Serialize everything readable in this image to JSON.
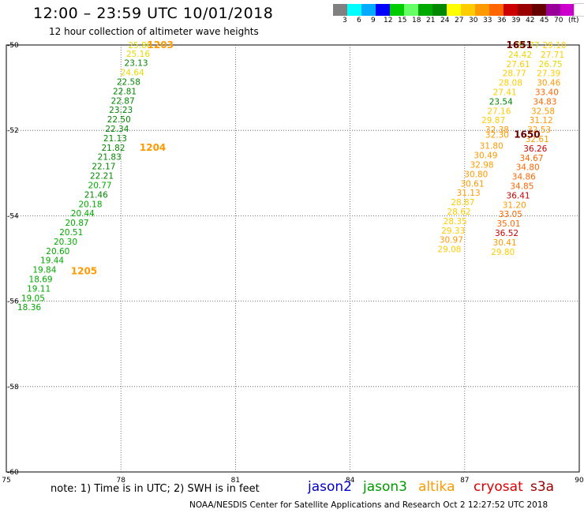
{
  "header": {
    "title": "12:00 – 23:59 UTC 10/01/2018",
    "subtitle": "12 hour collection of altimeter wave heights"
  },
  "legend": {
    "colors": [
      "#808080",
      "#00ffff",
      "#00aaff",
      "#0000ff",
      "#00cc00",
      "#66ff66",
      "#00aa00",
      "#008800",
      "#ffff00",
      "#ffcc00",
      "#ff9900",
      "#ff6600",
      "#cc0000",
      "#990000",
      "#660000",
      "#990099",
      "#cc00cc",
      "#ffffff",
      "#000000"
    ],
    "labels": [
      "3",
      "6",
      "9",
      "12",
      "15",
      "18",
      "21",
      "24",
      "27",
      "30",
      "33",
      "36",
      "39",
      "42",
      "45",
      "70",
      "(ft)"
    ]
  },
  "footer": {
    "note": "note:  1) Time is in UTC;  2) SWH is in feet",
    "satellites": [
      {
        "name": "jason2",
        "color": "#0000cc"
      },
      {
        "name": "jason3",
        "color": "#009900"
      },
      {
        "name": "altika",
        "color": "#ff9900"
      },
      {
        "name": "cryosat",
        "color": "#dd0000"
      },
      {
        "name": "s3a",
        "color": "#990000"
      }
    ],
    "credit": "NOAA/NESDIS Center for Satellite Applications and Research     Oct  2  12:27:52 UTC 2018"
  },
  "chart_data": {
    "type": "scatter",
    "title": "12:00 – 23:59 UTC 10/01/2018",
    "xlim": [
      75,
      90
    ],
    "ylim": [
      -60,
      -50
    ],
    "xticks": [
      "75",
      "78",
      "81",
      "84",
      "87",
      "90"
    ],
    "yticks": [
      "-50",
      "-52",
      "-54",
      "-56",
      "-58",
      "-60"
    ],
    "grid": true,
    "series": [
      {
        "name": "altika",
        "color_rule": "swh",
        "points": [
          {
            "x": 78.5,
            "y": -50.0,
            "v": "25.86"
          },
          {
            "x": 78.45,
            "y": -50.2,
            "v": "25.16"
          },
          {
            "x": 78.4,
            "y": -50.42,
            "v": "23.13"
          },
          {
            "x": 78.3,
            "y": -50.64,
            "v": "24.64"
          },
          {
            "x": 78.2,
            "y": -50.86,
            "v": "22.58"
          },
          {
            "x": 78.1,
            "y": -51.08,
            "v": "22.81"
          },
          {
            "x": 78.05,
            "y": -51.3,
            "v": "22.87"
          },
          {
            "x": 78.0,
            "y": -51.52,
            "v": "23.23"
          },
          {
            "x": 77.95,
            "y": -51.74,
            "v": "22.50"
          },
          {
            "x": 77.9,
            "y": -51.96,
            "v": "22.34"
          },
          {
            "x": 77.85,
            "y": -52.18,
            "v": "21.13"
          },
          {
            "x": 77.8,
            "y": -52.4,
            "v": "21.82"
          },
          {
            "x": 77.7,
            "y": -52.62,
            "v": "21.83"
          },
          {
            "x": 77.55,
            "y": -52.84,
            "v": "22.17"
          },
          {
            "x": 77.5,
            "y": -53.06,
            "v": "22.21"
          },
          {
            "x": 77.45,
            "y": -53.28,
            "v": "20.77"
          },
          {
            "x": 77.35,
            "y": -53.5,
            "v": "21.46"
          },
          {
            "x": 77.2,
            "y": -53.72,
            "v": "20.18"
          },
          {
            "x": 77.0,
            "y": -53.94,
            "v": "20.44"
          },
          {
            "x": 76.85,
            "y": -54.16,
            "v": "20.87"
          },
          {
            "x": 76.7,
            "y": -54.38,
            "v": "20.51"
          },
          {
            "x": 76.55,
            "y": -54.6,
            "v": "20.30"
          },
          {
            "x": 76.35,
            "y": -54.82,
            "v": "20.60"
          },
          {
            "x": 76.2,
            "y": -55.04,
            "v": "19.44"
          },
          {
            "x": 76.0,
            "y": -55.26,
            "v": "19.84"
          },
          {
            "x": 75.9,
            "y": -55.48,
            "v": "18.69"
          },
          {
            "x": 75.85,
            "y": -55.7,
            "v": "19.11"
          },
          {
            "x": 75.7,
            "y": -55.92,
            "v": "19.05"
          },
          {
            "x": 75.6,
            "y": -56.14,
            "v": "18.36"
          }
        ]
      },
      {
        "name": "s3a",
        "color_rule": "swh",
        "points": [
          {
            "x": 88.65,
            "y": -50.0,
            "v": "25.77"
          },
          {
            "x": 88.45,
            "y": -50.22,
            "v": "24.42"
          },
          {
            "x": 88.4,
            "y": -50.44,
            "v": "27.61"
          },
          {
            "x": 88.3,
            "y": -50.66,
            "v": "28.77"
          },
          {
            "x": 88.2,
            "y": -50.88,
            "v": "28.08"
          },
          {
            "x": 88.05,
            "y": -51.1,
            "v": "27.41"
          },
          {
            "x": 87.95,
            "y": -51.32,
            "v": "23.54"
          },
          {
            "x": 87.9,
            "y": -51.54,
            "v": "27.16"
          },
          {
            "x": 87.75,
            "y": -51.76,
            "v": "29.87"
          },
          {
            "x": 87.85,
            "y": -51.98,
            "v": "32.38"
          },
          {
            "x": 87.85,
            "y": -52.1,
            "v": "32.30"
          },
          {
            "x": 87.7,
            "y": -52.36,
            "v": "31.80"
          },
          {
            "x": 87.55,
            "y": -52.58,
            "v": "30.49"
          },
          {
            "x": 87.45,
            "y": -52.8,
            "v": "32.98"
          },
          {
            "x": 87.3,
            "y": -53.02,
            "v": "30.80"
          },
          {
            "x": 87.2,
            "y": -53.24,
            "v": "30.61"
          },
          {
            "x": 87.1,
            "y": -53.46,
            "v": "31.13"
          },
          {
            "x": 86.95,
            "y": -53.68,
            "v": "28.87"
          },
          {
            "x": 86.85,
            "y": -53.9,
            "v": "28.62"
          },
          {
            "x": 86.75,
            "y": -54.12,
            "v": "28.35"
          },
          {
            "x": 86.7,
            "y": -54.34,
            "v": "29.33"
          },
          {
            "x": 86.65,
            "y": -54.56,
            "v": "30.97"
          },
          {
            "x": 86.6,
            "y": -54.78,
            "v": "29.08"
          }
        ]
      },
      {
        "name": "cryosat",
        "color_rule": "swh",
        "points": [
          {
            "x": 89.35,
            "y": -50.0,
            "v": "29.10"
          },
          {
            "x": 89.3,
            "y": -50.22,
            "v": "27.71"
          },
          {
            "x": 89.25,
            "y": -50.44,
            "v": "26.75"
          },
          {
            "x": 89.2,
            "y": -50.66,
            "v": "27.39"
          },
          {
            "x": 89.2,
            "y": -50.88,
            "v": "30.46"
          },
          {
            "x": 89.15,
            "y": -51.1,
            "v": "33.40"
          },
          {
            "x": 89.1,
            "y": -51.32,
            "v": "34.83"
          },
          {
            "x": 89.05,
            "y": -51.54,
            "v": "32.58"
          },
          {
            "x": 89.0,
            "y": -51.76,
            "v": "31.12"
          },
          {
            "x": 88.95,
            "y": -51.98,
            "v": "32.53"
          },
          {
            "x": 88.9,
            "y": -52.2,
            "v": "32.61"
          },
          {
            "x": 88.85,
            "y": -52.42,
            "v": "36.26"
          },
          {
            "x": 88.75,
            "y": -52.64,
            "v": "34.67"
          },
          {
            "x": 88.65,
            "y": -52.86,
            "v": "34.80"
          },
          {
            "x": 88.55,
            "y": -53.08,
            "v": "34.86"
          },
          {
            "x": 88.5,
            "y": -53.3,
            "v": "34.85"
          },
          {
            "x": 88.4,
            "y": -53.52,
            "v": "36.41"
          },
          {
            "x": 88.3,
            "y": -53.74,
            "v": "31.20"
          },
          {
            "x": 88.2,
            "y": -53.96,
            "v": "33.05"
          },
          {
            "x": 88.15,
            "y": -54.18,
            "v": "35.01"
          },
          {
            "x": 88.1,
            "y": -54.4,
            "v": "36.52"
          },
          {
            "x": 88.05,
            "y": -54.62,
            "v": "30.41"
          },
          {
            "x": 88.0,
            "y": -54.84,
            "v": "29.80"
          }
        ]
      }
    ],
    "time_labels": [
      {
        "x": 78.4,
        "y": -50.0,
        "v": "1203",
        "color": "#ff9900"
      },
      {
        "x": 78.2,
        "y": -52.4,
        "v": "1204",
        "color": "#ff9900"
      },
      {
        "x": 76.4,
        "y": -55.3,
        "v": "1205",
        "color": "#ff9900"
      },
      {
        "x": 87.8,
        "y": -50.0,
        "v": "1651",
        "color": "#660000"
      },
      {
        "x": 88.0,
        "y": -52.1,
        "v": "1650",
        "color": "#660000"
      }
    ]
  }
}
